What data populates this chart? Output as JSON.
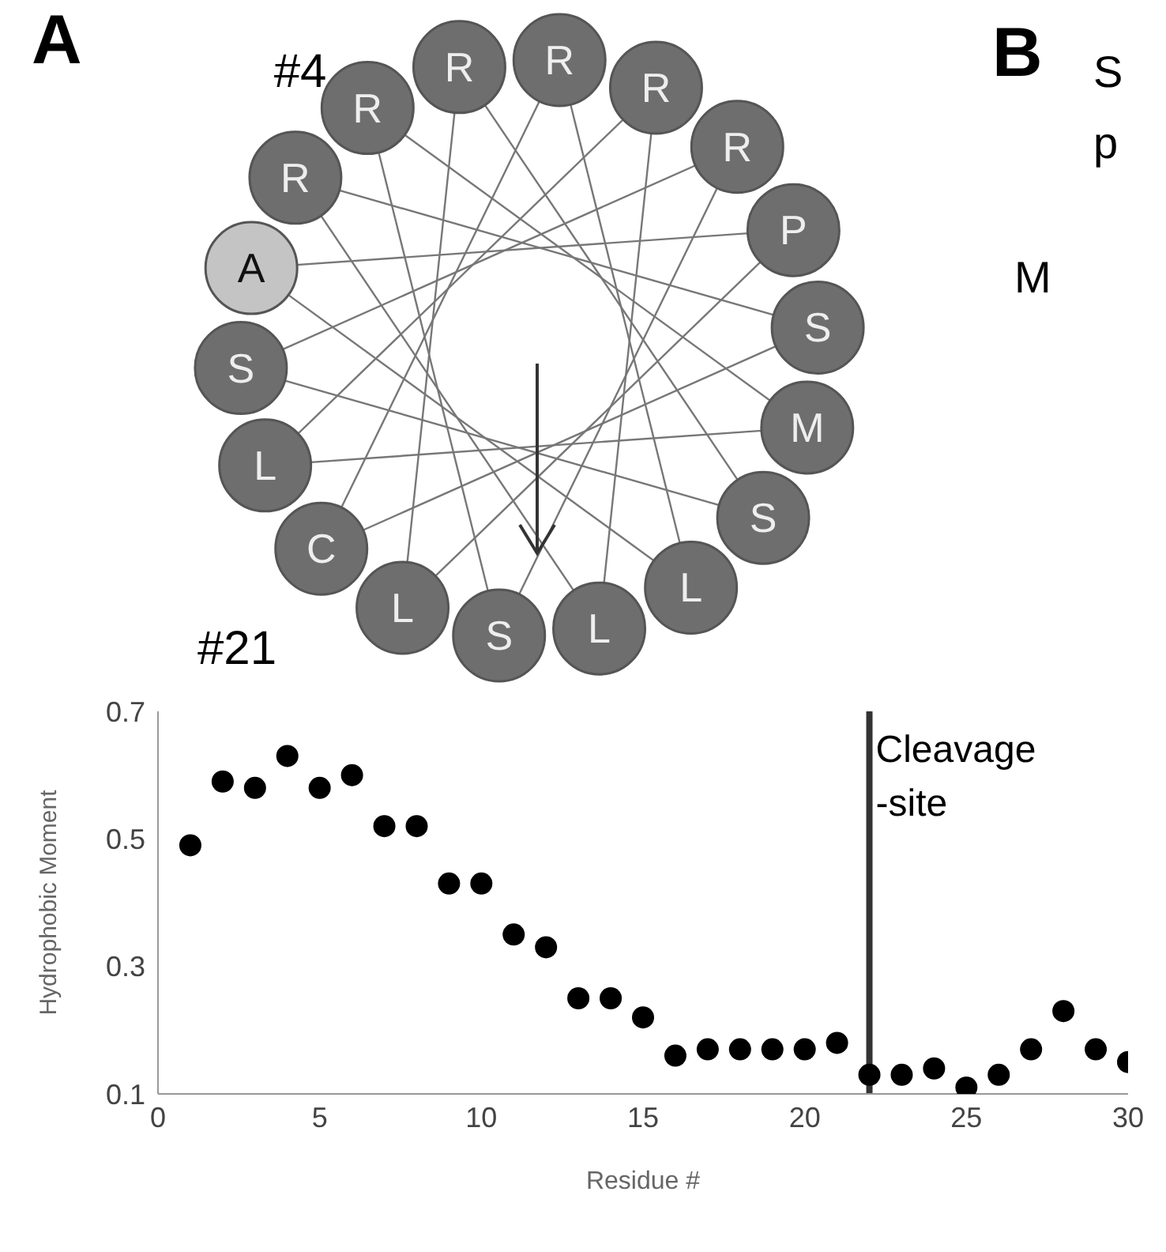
{
  "chart_data": [
    {
      "type": "other",
      "title": "A",
      "categories": [
        "R",
        "R",
        "R",
        "P",
        "S",
        "M",
        "S",
        "L",
        "L",
        "S",
        "L",
        "C",
        "L",
        "S",
        "A",
        "R",
        "R",
        "R"
      ],
      "colors": [
        "#6e6e6e",
        "#6e6e6e",
        "#6e6e6e",
        "#6e6e6e",
        "#6e6e6e",
        "#6e6e6e",
        "#6e6e6e",
        "#6e6e6e",
        "#6e6e6e",
        "#6e6e6e",
        "#6e6e6e",
        "#6e6e6e",
        "#6e6e6e",
        "#6e6e6e",
        "#c4c4c4",
        "#6e6e6e",
        "#6e6e6e",
        "#6e6e6e"
      ],
      "annotations": [
        "#4",
        "#21"
      ]
    },
    {
      "type": "other",
      "title": "B",
      "annotations": [
        "S",
        "p",
        "M"
      ]
    },
    {
      "type": "scatter",
      "xlabel": "Residue #",
      "ylabel": "Hydrophobic Moment",
      "x": [
        1,
        2,
        3,
        4,
        5,
        6,
        7,
        8,
        9,
        10,
        11,
        12,
        13,
        14,
        15,
        16,
        17,
        18,
        19,
        20,
        21,
        22,
        23,
        24,
        25,
        26,
        27,
        28,
        29,
        30
      ],
      "values": [
        0.49,
        0.59,
        0.58,
        0.63,
        0.58,
        0.6,
        0.52,
        0.52,
        0.43,
        0.43,
        0.35,
        0.33,
        0.25,
        0.25,
        0.22,
        0.16,
        0.17,
        0.17,
        0.17,
        0.17,
        0.18,
        0.13,
        0.13,
        0.14,
        0.11,
        0.13,
        0.17,
        0.23,
        0.17,
        0.15
      ],
      "color": "#000000",
      "marker": "circle",
      "xlim": [
        0,
        30
      ],
      "xticks": [
        0,
        5,
        10,
        15,
        20,
        25,
        30
      ],
      "ylim": [
        0.1,
        0.7
      ],
      "yticks": [
        0.1,
        0.3,
        0.5,
        0.7
      ],
      "ref_lines": [
        {
          "axis": "x",
          "value": 22,
          "label": "Cleavage\n-site",
          "color": "#333333"
        }
      ]
    }
  ]
}
